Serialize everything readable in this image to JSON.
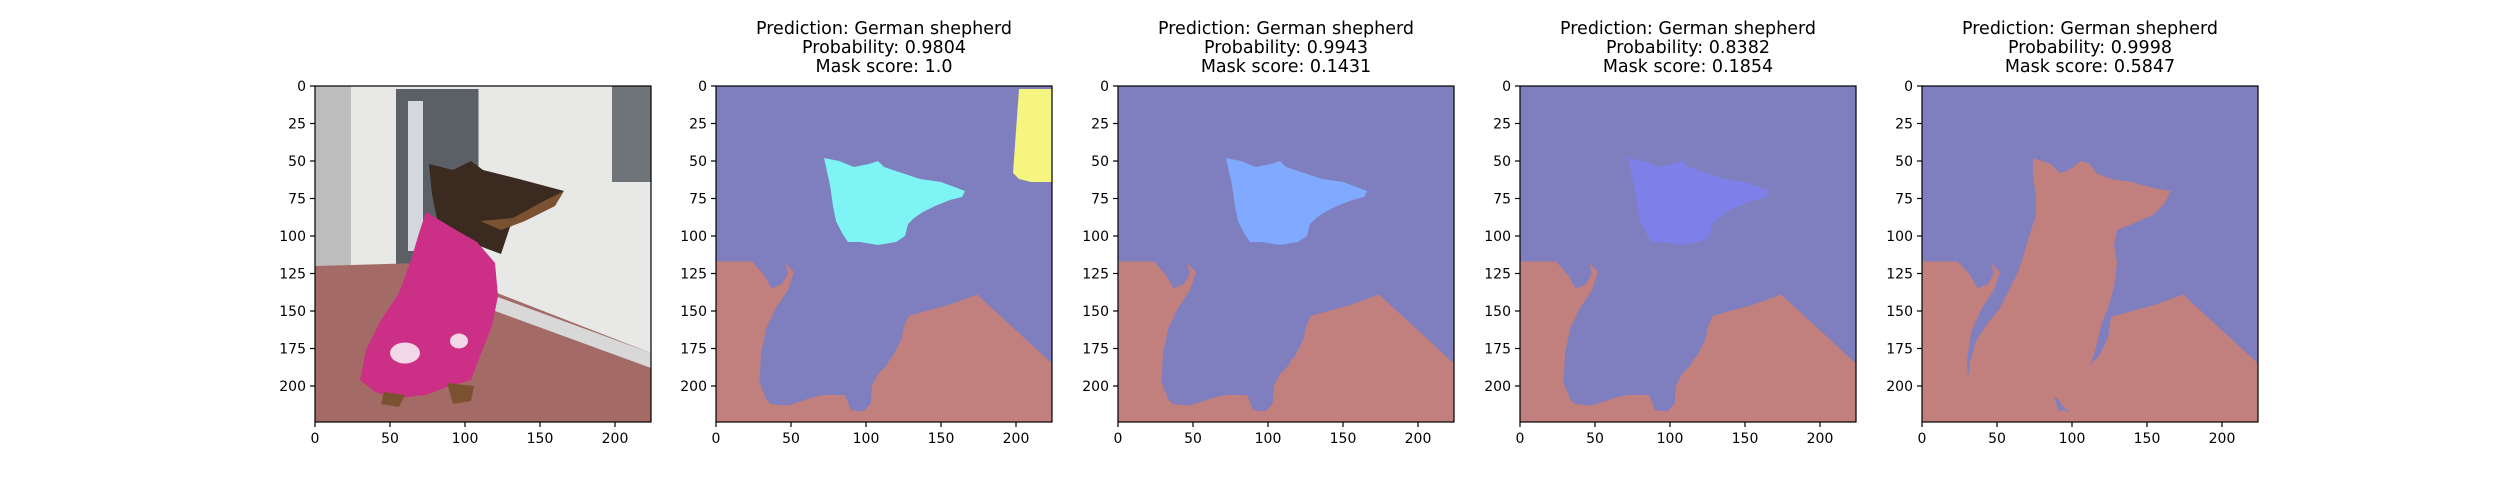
{
  "colors": {
    "background_class": "#7f7fbf",
    "foreground_class": "#c17f7d",
    "dog_highlight": "#a86070",
    "photo_wall": "#e8e8e6",
    "photo_floor": "#a46a66",
    "photo_towel": "#cc2f86",
    "photo_fur": "#3a2a20",
    "axis": "#000000"
  },
  "chart_data": [
    {
      "type": "image",
      "panel": "input-photo",
      "title_lines": [],
      "xticks": [
        0,
        50,
        100,
        150,
        200
      ],
      "yticks": [
        0,
        25,
        50,
        75,
        100,
        125,
        150,
        175,
        200
      ],
      "xlim": [
        0,
        224
      ],
      "ylim": [
        224,
        0
      ]
    },
    {
      "type": "heatmap",
      "panel": "segmentation-mask",
      "title_lines": [
        "Prediction: German shepherd",
        "Probability: 0.9804",
        "Mask score: 1.0"
      ],
      "highlight_color": "#7ff4f4",
      "extra_region_color": "#f5f57f",
      "xticks": [
        0,
        50,
        100,
        150,
        200
      ],
      "yticks": [
        0,
        25,
        50,
        75,
        100,
        125,
        150,
        175,
        200
      ],
      "xlim": [
        0,
        224
      ],
      "ylim": [
        224,
        0
      ]
    },
    {
      "type": "heatmap",
      "panel": "segmentation-mask",
      "title_lines": [
        "Prediction: German shepherd",
        "Probability: 0.9943",
        "Mask score: 0.1431"
      ],
      "highlight_color": "#7faaff",
      "xticks": [
        0,
        50,
        100,
        150,
        200
      ],
      "yticks": [
        0,
        25,
        50,
        75,
        100,
        125,
        150,
        175,
        200
      ],
      "xlim": [
        0,
        224
      ],
      "ylim": [
        224,
        0
      ]
    },
    {
      "type": "heatmap",
      "panel": "segmentation-mask",
      "title_lines": [
        "Prediction: German shepherd",
        "Probability: 0.8382",
        "Mask score: 0.1854"
      ],
      "highlight_color": "#7f7fea",
      "xticks": [
        0,
        50,
        100,
        150,
        200
      ],
      "yticks": [
        0,
        25,
        50,
        75,
        100,
        125,
        150,
        175,
        200
      ],
      "xlim": [
        0,
        224
      ],
      "ylim": [
        224,
        0
      ]
    },
    {
      "type": "heatmap",
      "panel": "segmentation-mask",
      "title_lines": [
        "Prediction: German shepherd",
        "Probability: 0.9998",
        "Mask score: 0.5847"
      ],
      "highlight_color": "#c17f7d",
      "xticks": [
        0,
        50,
        100,
        150,
        200
      ],
      "yticks": [
        0,
        25,
        50,
        75,
        100,
        125,
        150,
        175,
        200
      ],
      "xlim": [
        0,
        224
      ],
      "ylim": [
        224,
        0
      ]
    }
  ]
}
